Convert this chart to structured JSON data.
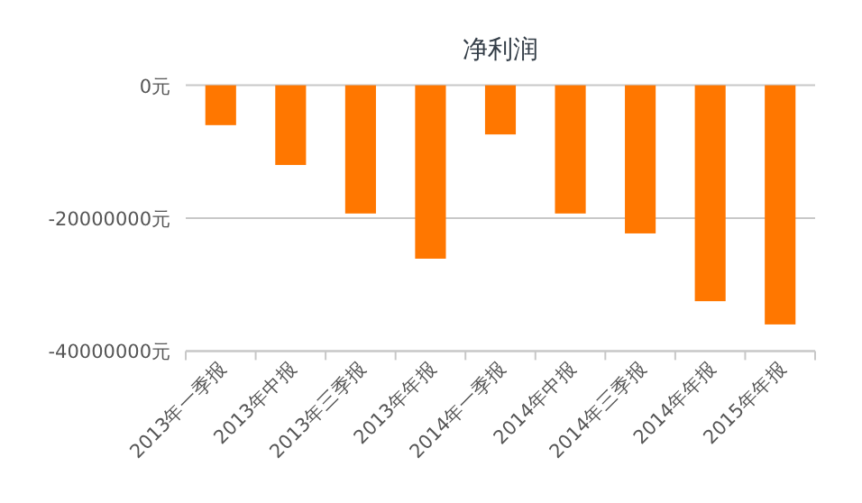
{
  "chart_data": {
    "type": "bar",
    "title": "净利润",
    "categories": [
      "2013年一季报",
      "2013年中报",
      "2013年三季报",
      "2013年年报",
      "2014年一季报",
      "2014年中报",
      "2014年三季报",
      "2014年年报",
      "2015年年报"
    ],
    "values": [
      -6000000,
      -12000000,
      -19300000,
      -26100000,
      -7400000,
      -19300000,
      -22300000,
      -32500000,
      -36000000
    ],
    "color": "#ff7700",
    "ylim": [
      -40000000,
      0
    ],
    "yticks": [
      {
        "value": 0,
        "label": "0元"
      },
      {
        "value": -20000000,
        "label": "-20000000元"
      },
      {
        "value": -40000000,
        "label": "-40000000元"
      }
    ],
    "grid": "y"
  }
}
